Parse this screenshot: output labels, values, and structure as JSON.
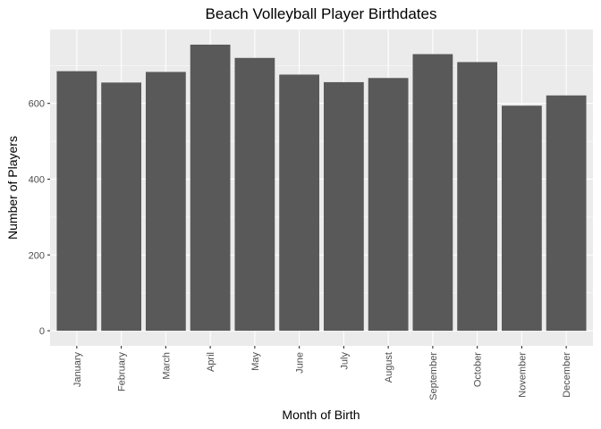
{
  "chart_data": {
    "type": "bar",
    "title": "Beach Volleyball Player Birthdates",
    "xlabel": "Month of Birth",
    "ylabel": "Number of Players",
    "categories": [
      "January",
      "February",
      "March",
      "April",
      "May",
      "June",
      "July",
      "August",
      "September",
      "October",
      "November",
      "December"
    ],
    "values": [
      685,
      655,
      683,
      755,
      720,
      676,
      656,
      667,
      730,
      709,
      594,
      621
    ],
    "ylim": [
      -40,
      795
    ],
    "yticks": [
      0,
      200,
      400,
      600
    ],
    "ytick_labels": [
      "0",
      "200",
      "400",
      "600"
    ],
    "grid": true,
    "bar_color": "#595959",
    "panel_background": "#ebebeb",
    "grid_color": "#ffffff"
  }
}
